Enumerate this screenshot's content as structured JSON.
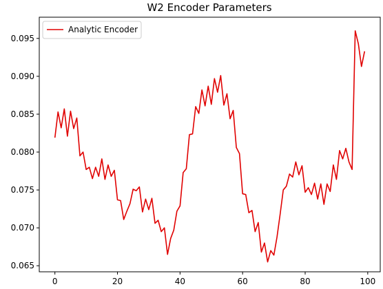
{
  "chart_data": {
    "type": "line",
    "title": "W2  Encoder Parameters",
    "xlabel": "",
    "ylabel": "",
    "xlim": [
      -5,
      104
    ],
    "ylim": [
      0.0642,
      0.0978
    ],
    "xticks": [
      0,
      20,
      40,
      60,
      80,
      100
    ],
    "yticks": [
      0.065,
      0.07,
      0.075,
      0.08,
      0.085,
      0.09,
      0.095
    ],
    "ytick_labels": [
      "0.065",
      "0.070",
      "0.075",
      "0.080",
      "0.085",
      "0.090",
      "0.095"
    ],
    "grid": false,
    "legend_position": "top-left",
    "series": [
      {
        "name": "Analytic Encoder",
        "color": "#e00000",
        "x": [
          0,
          1,
          2,
          3,
          4,
          5,
          6,
          7,
          8,
          9,
          10,
          11,
          12,
          13,
          14,
          15,
          16,
          17,
          18,
          19,
          20,
          21,
          22,
          23,
          24,
          25,
          26,
          27,
          28,
          29,
          30,
          31,
          32,
          33,
          34,
          35,
          36,
          37,
          38,
          39,
          40,
          41,
          42,
          43,
          44,
          45,
          46,
          47,
          48,
          49,
          50,
          51,
          52,
          53,
          54,
          55,
          56,
          57,
          58,
          59,
          60,
          61,
          62,
          63,
          64,
          65,
          66,
          67,
          68,
          69,
          70,
          71,
          72,
          73,
          74,
          75,
          76,
          77,
          78,
          79,
          80,
          81,
          82,
          83,
          84,
          85,
          86,
          87,
          88,
          89,
          90,
          91,
          92,
          93,
          94,
          95,
          96,
          97,
          98,
          99
        ],
        "values": [
          0.0819,
          0.0853,
          0.0832,
          0.0857,
          0.0821,
          0.0854,
          0.0831,
          0.0845,
          0.0795,
          0.08,
          0.0777,
          0.078,
          0.0765,
          0.078,
          0.0768,
          0.0791,
          0.0764,
          0.0783,
          0.0768,
          0.0776,
          0.0737,
          0.0736,
          0.0711,
          0.0722,
          0.0732,
          0.0751,
          0.0749,
          0.0754,
          0.0721,
          0.0738,
          0.0724,
          0.0739,
          0.0706,
          0.071,
          0.0695,
          0.07,
          0.0665,
          0.0686,
          0.0697,
          0.0722,
          0.0729,
          0.0773,
          0.0778,
          0.0823,
          0.0824,
          0.086,
          0.0851,
          0.0882,
          0.0861,
          0.0887,
          0.0863,
          0.0897,
          0.0879,
          0.0901,
          0.0862,
          0.0877,
          0.0844,
          0.0855,
          0.0806,
          0.0798,
          0.0745,
          0.0744,
          0.072,
          0.0723,
          0.0695,
          0.0707,
          0.0668,
          0.068,
          0.0655,
          0.067,
          0.0664,
          0.0688,
          0.0718,
          0.075,
          0.0755,
          0.0771,
          0.0767,
          0.0787,
          0.077,
          0.0782,
          0.0747,
          0.0753,
          0.0744,
          0.0759,
          0.0738,
          0.0758,
          0.0731,
          0.0758,
          0.0748,
          0.0783,
          0.0764,
          0.0802,
          0.0791,
          0.0805,
          0.0787,
          0.0777,
          0.096,
          0.0943,
          0.0913,
          0.0933
        ]
      }
    ]
  }
}
